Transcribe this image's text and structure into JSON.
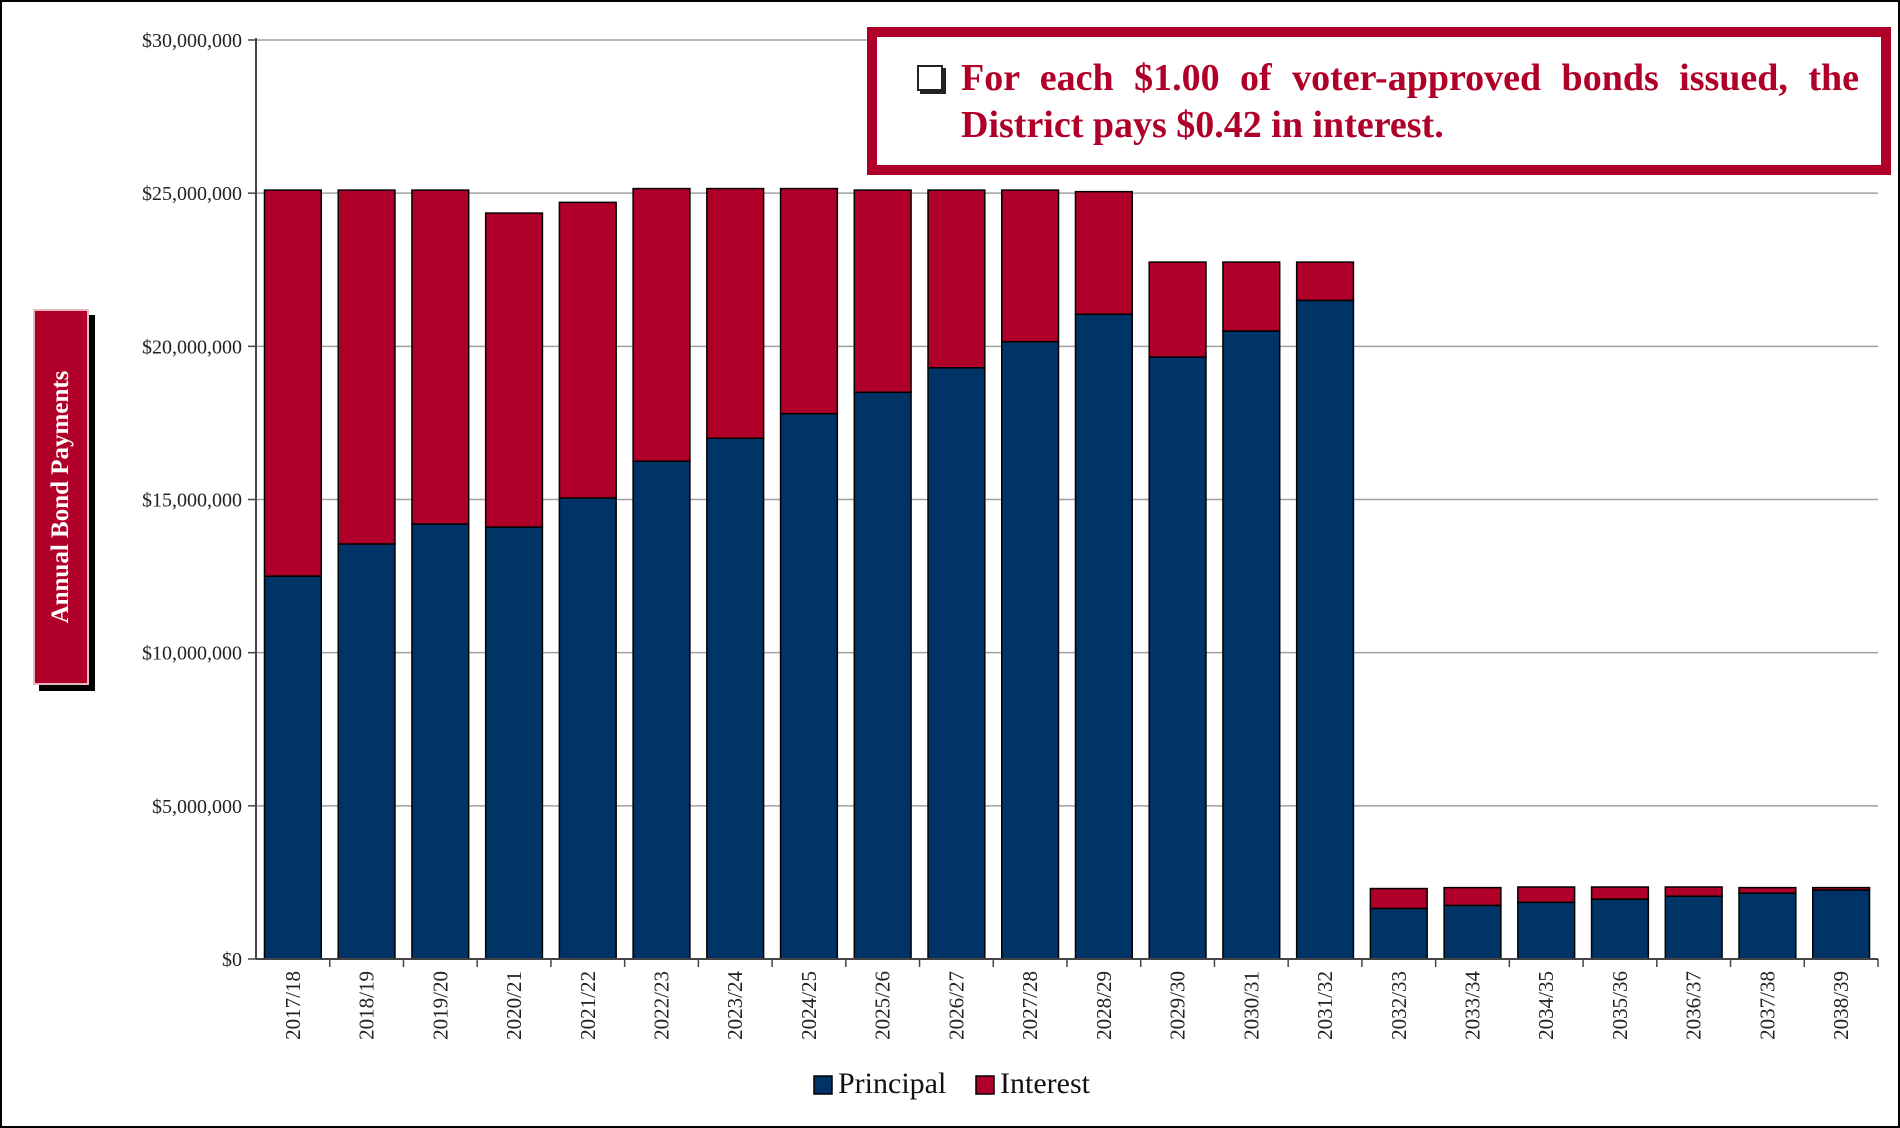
{
  "callout": {
    "icon": "checkbox-icon",
    "text": "For each $1.00 of voter-approved bonds issued, the District pays $0.42 in interest."
  },
  "colors": {
    "principal": "#003366",
    "interest": "#b00029",
    "grid": "#a0a0a0"
  },
  "chart_data": {
    "type": "bar",
    "stacked": true,
    "ylabel": "Annual Bond Payments",
    "xlabel": "",
    "ylim": [
      0,
      30000000
    ],
    "yticks": [
      "$0",
      "$5,000,000",
      "$10,000,000",
      "$15,000,000",
      "$20,000,000",
      "$25,000,000",
      "$30,000,000"
    ],
    "grid": true,
    "legend_position": "bottom",
    "categories": [
      "2017/18",
      "2018/19",
      "2019/20",
      "2020/21",
      "2021/22",
      "2022/23",
      "2023/24",
      "2024/25",
      "2025/26",
      "2026/27",
      "2027/28",
      "2028/29",
      "2029/30",
      "2030/31",
      "2031/32",
      "2032/33",
      "2033/34",
      "2034/35",
      "2035/36",
      "2036/37",
      "2037/38",
      "2038/39"
    ],
    "series": [
      {
        "name": "Principal",
        "values": [
          12500000,
          13550000,
          14200000,
          14100000,
          15050000,
          16250000,
          17000000,
          17800000,
          18500000,
          19300000,
          20150000,
          21050000,
          19650000,
          20500000,
          21500000,
          1650000,
          1750000,
          1850000,
          1950000,
          2050000,
          2150000,
          2250000
        ]
      },
      {
        "name": "Interest",
        "values": [
          12600000,
          11550000,
          10900000,
          10250000,
          9650000,
          8900000,
          8150000,
          7350000,
          6600000,
          5800000,
          4950000,
          4000000,
          3100000,
          2250000,
          1250000,
          650000,
          580000,
          500000,
          400000,
          300000,
          180000,
          80000
        ]
      }
    ]
  }
}
